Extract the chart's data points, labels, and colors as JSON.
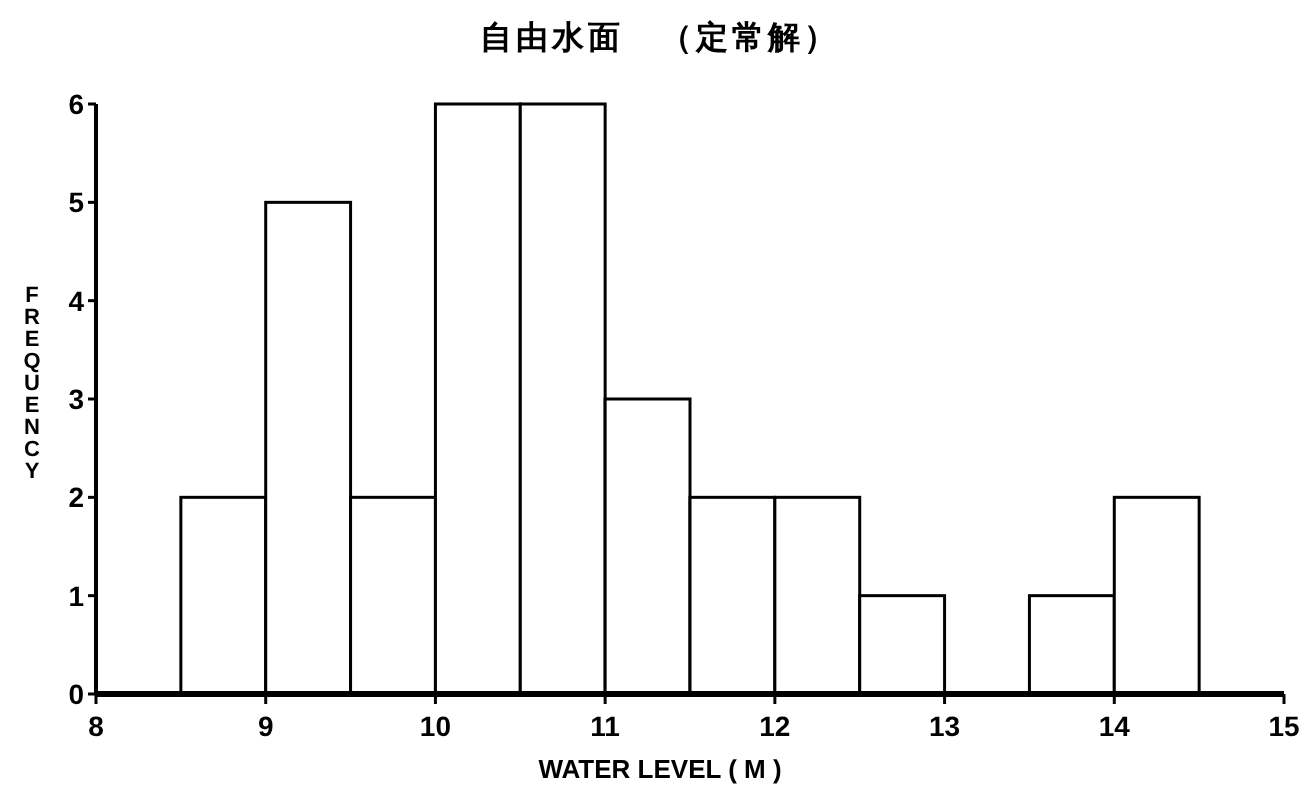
{
  "chart_data": {
    "type": "histogram",
    "title": "自由水面　（定常解）",
    "xlabel": "WATER LEVEL ( M )",
    "ylabel": "FREQUENCY",
    "bins": [
      8.5,
      9,
      9.5,
      10,
      10.5,
      11,
      11.5,
      12,
      12.5,
      13,
      13.5,
      14,
      14.5
    ],
    "values": [
      2,
      5,
      2,
      6,
      6,
      3,
      2,
      2,
      1,
      0,
      1,
      2
    ],
    "color": "#ffffff",
    "xlim": [
      8,
      15
    ],
    "xticks": [
      8,
      9,
      10,
      11,
      12,
      13,
      14,
      15
    ],
    "ylim": [
      0,
      6
    ],
    "yticks": [
      0,
      1,
      2,
      3,
      4,
      5,
      6
    ],
    "grid": false
  }
}
